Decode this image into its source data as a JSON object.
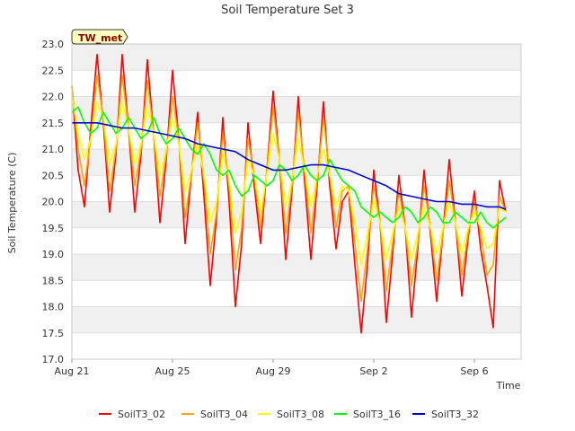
{
  "chart_data": {
    "type": "line",
    "title": "Soil Temperature Set 3",
    "xlabel": "Time",
    "ylabel": "Soil Temperature (C)",
    "badge": "TW_met",
    "ylim": [
      17.0,
      23.0
    ],
    "xlim": [
      "2023-08-21",
      "2023-09-08"
    ],
    "grid": "horizontal-bands",
    "legend_position": "bottom",
    "yticks": [
      "17.0",
      "17.5",
      "18.0",
      "18.5",
      "19.0",
      "19.5",
      "20.0",
      "20.5",
      "21.0",
      "21.5",
      "22.0",
      "22.5",
      "23.0"
    ],
    "xticks": [
      {
        "label": "Aug 21",
        "day": 0
      },
      {
        "label": "Aug 25",
        "day": 4
      },
      {
        "label": "Aug 29",
        "day": 8
      },
      {
        "label": "Sep 2",
        "day": 12
      },
      {
        "label": "Sep 6",
        "day": 16
      }
    ],
    "series": [
      {
        "name": "SoilT3_02",
        "color": "#ff0000",
        "x": [
          0.0,
          0.25,
          0.5,
          0.75,
          1.0,
          1.25,
          1.5,
          1.75,
          2.0,
          2.25,
          2.5,
          2.75,
          3.0,
          3.25,
          3.5,
          3.75,
          4.0,
          4.25,
          4.5,
          4.75,
          5.0,
          5.25,
          5.5,
          5.75,
          6.0,
          6.25,
          6.5,
          6.75,
          7.0,
          7.25,
          7.5,
          7.75,
          8.0,
          8.25,
          8.5,
          8.75,
          9.0,
          9.25,
          9.5,
          9.75,
          10.0,
          10.25,
          10.5,
          10.75,
          11.0,
          11.25,
          11.5,
          11.75,
          12.0,
          12.25,
          12.5,
          12.75,
          13.0,
          13.25,
          13.5,
          13.75,
          14.0,
          14.25,
          14.5,
          14.75,
          15.0,
          15.25,
          15.5,
          15.75,
          16.0,
          16.25,
          16.5,
          16.75,
          17.0,
          17.25
        ],
        "y": [
          22.2,
          20.6,
          19.9,
          21.4,
          22.8,
          21.5,
          19.8,
          20.9,
          22.8,
          21.4,
          19.8,
          20.9,
          22.7,
          21.3,
          19.6,
          20.8,
          22.5,
          21.2,
          19.2,
          20.5,
          21.7,
          20.1,
          18.4,
          19.7,
          21.6,
          20.0,
          18.0,
          19.2,
          21.5,
          20.3,
          19.2,
          20.6,
          22.1,
          20.8,
          18.9,
          20.2,
          22.0,
          20.4,
          18.9,
          20.3,
          21.9,
          20.3,
          19.1,
          20.0,
          20.2,
          18.8,
          17.5,
          18.8,
          20.6,
          19.6,
          17.7,
          19.0,
          20.5,
          19.5,
          17.8,
          19.1,
          20.6,
          19.4,
          18.1,
          19.4,
          20.8,
          19.6,
          18.2,
          19.3,
          20.2,
          19.1,
          18.4,
          17.6,
          20.4,
          19.8
        ]
      },
      {
        "name": "SoilT3_04",
        "color": "#ffa500",
        "x": [
          0.0,
          0.25,
          0.5,
          0.75,
          1.0,
          1.25,
          1.5,
          1.75,
          2.0,
          2.25,
          2.5,
          2.75,
          3.0,
          3.25,
          3.5,
          3.75,
          4.0,
          4.25,
          4.5,
          4.75,
          5.0,
          5.25,
          5.5,
          5.75,
          6.0,
          6.25,
          6.5,
          6.75,
          7.0,
          7.25,
          7.5,
          7.75,
          8.0,
          8.25,
          8.5,
          8.75,
          9.0,
          9.25,
          9.5,
          9.75,
          10.0,
          10.25,
          10.5,
          10.75,
          11.0,
          11.25,
          11.5,
          11.75,
          12.0,
          12.25,
          12.5,
          12.75,
          13.0,
          13.25,
          13.5,
          13.75,
          14.0,
          14.25,
          14.5,
          14.75,
          15.0,
          15.25,
          15.5,
          15.75,
          16.0,
          16.25,
          16.5,
          16.75,
          17.0,
          17.25
        ],
        "y": [
          22.2,
          21.0,
          20.3,
          21.2,
          22.4,
          21.6,
          20.2,
          21.0,
          22.4,
          21.4,
          20.3,
          21.0,
          22.3,
          21.3,
          20.1,
          20.9,
          22.0,
          21.2,
          19.7,
          20.5,
          21.5,
          20.4,
          19.0,
          19.8,
          21.3,
          20.3,
          18.7,
          19.5,
          21.2,
          20.5,
          19.5,
          20.6,
          21.8,
          20.8,
          19.4,
          20.3,
          21.7,
          20.6,
          19.4,
          20.4,
          21.6,
          20.5,
          19.5,
          20.2,
          20.3,
          19.2,
          18.1,
          19.1,
          20.3,
          19.6,
          18.3,
          19.2,
          20.2,
          19.5,
          18.4,
          19.2,
          20.3,
          19.5,
          18.5,
          19.4,
          20.4,
          19.6,
          18.6,
          19.4,
          20.0,
          19.4,
          18.6,
          18.8,
          20.1,
          19.8
        ]
      },
      {
        "name": "SoilT3_08",
        "color": "#ffff00",
        "x": [
          0.0,
          0.25,
          0.5,
          0.75,
          1.0,
          1.25,
          1.5,
          1.75,
          2.0,
          2.25,
          2.5,
          2.75,
          3.0,
          3.25,
          3.5,
          3.75,
          4.0,
          4.25,
          4.5,
          4.75,
          5.0,
          5.25,
          5.5,
          5.75,
          6.0,
          6.25,
          6.5,
          6.75,
          7.0,
          7.25,
          7.5,
          7.75,
          8.0,
          8.25,
          8.5,
          8.75,
          9.0,
          9.25,
          9.5,
          9.75,
          10.0,
          10.25,
          10.5,
          10.75,
          11.0,
          11.25,
          11.5,
          11.75,
          12.0,
          12.25,
          12.5,
          12.75,
          13.0,
          13.25,
          13.5,
          13.75,
          14.0,
          14.25,
          14.5,
          14.75,
          15.0,
          15.25,
          15.5,
          15.75,
          16.0,
          16.25,
          16.5,
          16.75,
          17.0,
          17.25
        ],
        "y": [
          22.0,
          21.3,
          20.8,
          21.2,
          21.9,
          21.6,
          20.7,
          21.1,
          21.9,
          21.4,
          20.7,
          21.1,
          21.8,
          21.3,
          20.5,
          21.0,
          21.6,
          21.1,
          20.2,
          20.6,
          21.1,
          20.5,
          19.6,
          20.0,
          20.9,
          20.4,
          19.4,
          19.8,
          20.8,
          20.5,
          19.8,
          20.5,
          21.3,
          20.8,
          19.9,
          20.4,
          21.2,
          20.6,
          19.9,
          20.5,
          21.0,
          20.5,
          19.9,
          20.3,
          20.2,
          19.6,
          18.8,
          19.4,
          20.0,
          19.6,
          18.9,
          19.4,
          19.9,
          19.5,
          18.9,
          19.4,
          19.9,
          19.5,
          19.0,
          19.5,
          20.0,
          19.6,
          19.0,
          19.5,
          19.8,
          19.5,
          19.1,
          19.2,
          19.9,
          19.8
        ]
      },
      {
        "name": "SoilT3_16",
        "color": "#00ff00",
        "x": [
          0.0,
          0.25,
          0.5,
          0.75,
          1.0,
          1.25,
          1.5,
          1.75,
          2.0,
          2.25,
          2.5,
          2.75,
          3.0,
          3.25,
          3.5,
          3.75,
          4.0,
          4.25,
          4.5,
          4.75,
          5.0,
          5.25,
          5.5,
          5.75,
          6.0,
          6.25,
          6.5,
          6.75,
          7.0,
          7.25,
          7.5,
          7.75,
          8.0,
          8.25,
          8.5,
          8.75,
          9.0,
          9.25,
          9.5,
          9.75,
          10.0,
          10.25,
          10.5,
          10.75,
          11.0,
          11.25,
          11.5,
          11.75,
          12.0,
          12.25,
          12.5,
          12.75,
          13.0,
          13.25,
          13.5,
          13.75,
          14.0,
          14.25,
          14.5,
          14.75,
          15.0,
          15.25,
          15.5,
          15.75,
          16.0,
          16.25,
          16.5,
          16.75,
          17.0,
          17.25
        ],
        "y": [
          21.7,
          21.8,
          21.5,
          21.3,
          21.4,
          21.7,
          21.5,
          21.3,
          21.4,
          21.6,
          21.4,
          21.2,
          21.3,
          21.6,
          21.3,
          21.1,
          21.2,
          21.4,
          21.2,
          21.0,
          20.9,
          21.1,
          20.9,
          20.6,
          20.5,
          20.6,
          20.3,
          20.1,
          20.2,
          20.5,
          20.4,
          20.3,
          20.4,
          20.7,
          20.6,
          20.4,
          20.5,
          20.7,
          20.5,
          20.4,
          20.5,
          20.8,
          20.6,
          20.4,
          20.3,
          20.2,
          19.9,
          19.8,
          19.7,
          19.8,
          19.7,
          19.6,
          19.7,
          19.9,
          19.8,
          19.6,
          19.7,
          19.9,
          19.8,
          19.6,
          19.6,
          19.8,
          19.7,
          19.6,
          19.6,
          19.8,
          19.6,
          19.5,
          19.6,
          19.7
        ]
      },
      {
        "name": "SoilT3_32",
        "color": "#0000cc",
        "x": [
          0.0,
          0.5,
          1.0,
          1.5,
          2.0,
          2.5,
          3.0,
          3.5,
          4.0,
          4.5,
          5.0,
          5.5,
          6.0,
          6.5,
          7.0,
          7.5,
          8.0,
          8.5,
          9.0,
          9.5,
          10.0,
          10.5,
          11.0,
          11.5,
          12.0,
          12.5,
          13.0,
          13.5,
          14.0,
          14.5,
          15.0,
          15.5,
          16.0,
          16.5,
          17.0,
          17.25
        ],
        "y": [
          21.5,
          21.5,
          21.5,
          21.45,
          21.4,
          21.4,
          21.35,
          21.3,
          21.25,
          21.2,
          21.1,
          21.05,
          21.0,
          20.95,
          20.8,
          20.7,
          20.6,
          20.6,
          20.65,
          20.7,
          20.7,
          20.65,
          20.6,
          20.5,
          20.4,
          20.3,
          20.15,
          20.1,
          20.05,
          20.0,
          20.0,
          19.95,
          19.95,
          19.9,
          19.9,
          19.85
        ]
      }
    ]
  }
}
